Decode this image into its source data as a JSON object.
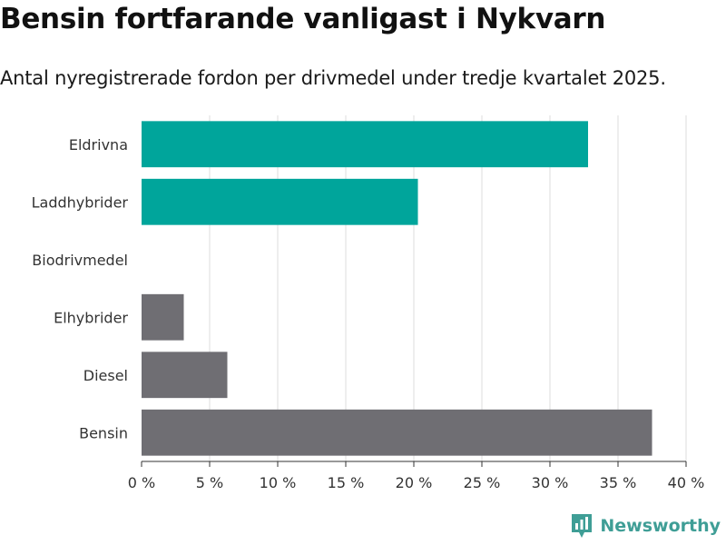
{
  "chart_data": {
    "type": "bar",
    "orientation": "horizontal",
    "title": "Bensin fortfarande vanligast i Nykvarn",
    "subtitle": "Antal nyregistrerade fordon per drivmedel under tredje kvartalet 2025.",
    "categories": [
      "Eldrivna",
      "Laddhybrider",
      "Biodrivmedel",
      "Elhybrider",
      "Diesel",
      "Bensin"
    ],
    "values": [
      32.8,
      20.3,
      0,
      3.1,
      6.3,
      37.5
    ],
    "bar_colors": [
      "#00a59b",
      "#00a59b",
      "#00a59b",
      "#6f6e73",
      "#6f6e73",
      "#6f6e73"
    ],
    "xlim": [
      0,
      40
    ],
    "x_ticks": [
      0,
      5,
      10,
      15,
      20,
      25,
      30,
      35,
      40
    ],
    "x_tick_labels": [
      "0 %",
      "5 %",
      "10 %",
      "15 %",
      "20 %",
      "25 %",
      "30 %",
      "35 %",
      "40 %"
    ],
    "xlabel": "",
    "ylabel": "",
    "grid": true
  },
  "brand": {
    "name": "Newsworthy",
    "icon": "newsworthy-logo-icon",
    "color": "#3f9e96"
  }
}
